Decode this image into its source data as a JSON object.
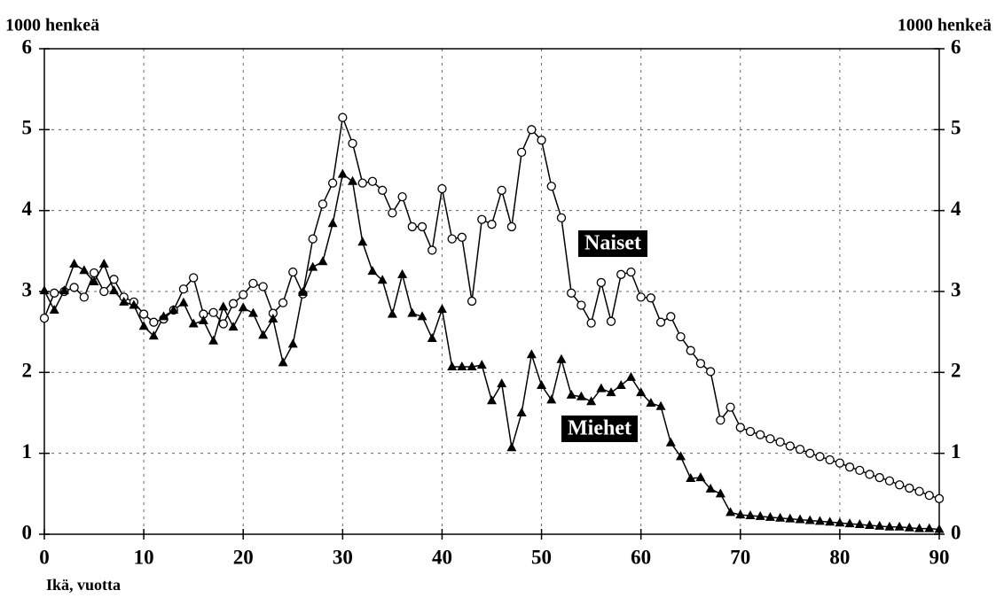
{
  "chart_data": {
    "type": "line",
    "y_label": "1000 henkeä",
    "y2_label": "1000 henkeä",
    "x_label": "Ikä, vuotta",
    "x": [
      0,
      1,
      2,
      3,
      4,
      5,
      6,
      7,
      8,
      9,
      10,
      11,
      12,
      13,
      14,
      15,
      16,
      17,
      18,
      19,
      20,
      21,
      22,
      23,
      24,
      25,
      26,
      27,
      28,
      29,
      30,
      31,
      32,
      33,
      34,
      35,
      36,
      37,
      38,
      39,
      40,
      41,
      42,
      43,
      44,
      45,
      46,
      47,
      48,
      49,
      50,
      51,
      52,
      53,
      54,
      55,
      56,
      57,
      58,
      59,
      60,
      61,
      62,
      63,
      64,
      65,
      66,
      67,
      68,
      69,
      70,
      71,
      72,
      73,
      74,
      75,
      76,
      77,
      78,
      79,
      80,
      81,
      82,
      83,
      84,
      85,
      86,
      87,
      88,
      89,
      90
    ],
    "series": [
      {
        "name": "Naiset",
        "color": "#000000",
        "marker": "circle",
        "values": [
          2.67,
          2.98,
          3.0,
          3.05,
          2.93,
          3.23,
          3.0,
          3.15,
          2.93,
          2.87,
          2.72,
          2.62,
          2.66,
          2.77,
          3.03,
          3.17,
          2.72,
          2.74,
          2.6,
          2.85,
          2.96,
          3.1,
          3.06,
          2.73,
          2.86,
          3.24,
          2.97,
          3.65,
          4.08,
          4.34,
          5.15,
          4.83,
          4.34,
          4.36,
          4.25,
          3.97,
          4.17,
          3.8,
          3.8,
          3.51,
          4.27,
          3.65,
          3.67,
          2.88,
          3.89,
          3.83,
          4.25,
          3.8,
          4.72,
          5.0,
          4.87,
          4.3,
          3.91,
          2.98,
          2.83,
          2.61,
          3.11,
          2.63,
          3.21,
          3.24,
          2.93,
          2.92,
          2.62,
          2.69,
          2.44,
          2.27,
          2.11,
          2.01,
          1.41,
          1.57,
          1.32,
          1.27,
          1.23,
          1.18,
          1.14,
          1.09,
          1.05,
          1.0,
          0.96,
          0.92,
          0.88,
          0.83,
          0.79,
          0.74,
          0.7,
          0.66,
          0.61,
          0.57,
          0.53,
          0.48,
          0.44
        ]
      },
      {
        "name": "Miehet",
        "color": "#000000",
        "marker": "triangle",
        "values": [
          3.01,
          2.77,
          3.01,
          3.34,
          3.26,
          3.12,
          3.34,
          3.01,
          2.87,
          2.83,
          2.57,
          2.45,
          2.69,
          2.77,
          2.86,
          2.6,
          2.64,
          2.39,
          2.81,
          2.56,
          2.8,
          2.73,
          2.46,
          2.66,
          2.12,
          2.35,
          2.99,
          3.3,
          3.37,
          3.84,
          4.45,
          4.36,
          3.61,
          3.25,
          3.14,
          2.72,
          3.21,
          2.73,
          2.69,
          2.42,
          2.78,
          2.07,
          2.07,
          2.07,
          2.09,
          1.65,
          1.86,
          1.07,
          1.5,
          2.22,
          1.84,
          1.66,
          2.16,
          1.72,
          1.7,
          1.64,
          1.8,
          1.75,
          1.84,
          1.94,
          1.75,
          1.62,
          1.58,
          1.13,
          0.96,
          0.69,
          0.7,
          0.56,
          0.5,
          0.27,
          0.24,
          0.23,
          0.22,
          0.21,
          0.2,
          0.19,
          0.18,
          0.17,
          0.16,
          0.15,
          0.14,
          0.13,
          0.12,
          0.11,
          0.1,
          0.09,
          0.09,
          0.08,
          0.07,
          0.07,
          0.06
        ]
      }
    ],
    "xlim": [
      0,
      90
    ],
    "xticks": [
      0,
      10,
      20,
      30,
      40,
      50,
      60,
      70,
      80,
      90
    ],
    "ylim": [
      0,
      6
    ],
    "yticks": [
      0,
      1,
      2,
      3,
      4,
      5,
      6
    ],
    "y2lim": [
      0,
      6
    ],
    "y2ticks": [
      0,
      1,
      2,
      3,
      4,
      5,
      6
    ],
    "grid": true
  }
}
